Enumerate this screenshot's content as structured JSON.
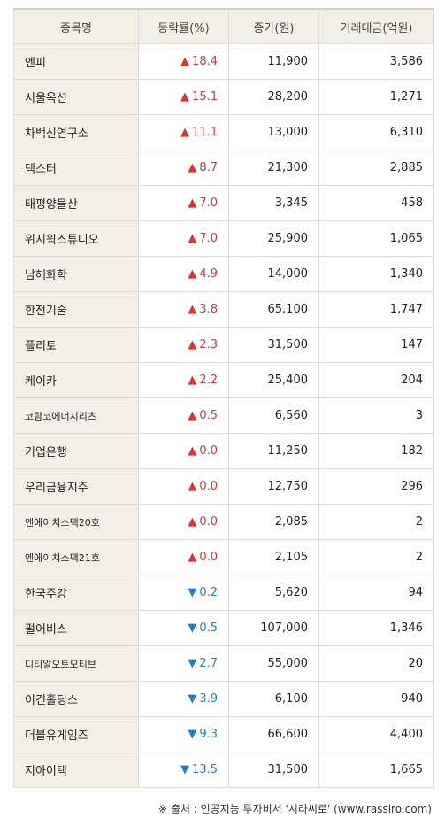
{
  "headers": {
    "name": "종목명",
    "rate": "등락률(%)",
    "price": "종가(원)",
    "amount": "거래대금(억원)"
  },
  "arrows": {
    "up": "▲",
    "down": "▼"
  },
  "colors": {
    "up": "#e03131",
    "down": "#1c7ed6",
    "header_bg": "#f3efe6"
  },
  "rows": [
    {
      "name": "엔피",
      "dir": "up",
      "rate": "18.4",
      "price": "11,900",
      "amount": "3,586"
    },
    {
      "name": "서울옥션",
      "dir": "up",
      "rate": "15.1",
      "price": "28,200",
      "amount": "1,271"
    },
    {
      "name": "차백신연구소",
      "dir": "up",
      "rate": "11.1",
      "price": "13,000",
      "amount": "6,310"
    },
    {
      "name": "덱스터",
      "dir": "up",
      "rate": "8.7",
      "price": "21,300",
      "amount": "2,885"
    },
    {
      "name": "태평양물산",
      "dir": "up",
      "rate": "7.0",
      "price": "3,345",
      "amount": "458"
    },
    {
      "name": "위지윅스튜디오",
      "dir": "up",
      "rate": "7.0",
      "price": "25,900",
      "amount": "1,065"
    },
    {
      "name": "남해화학",
      "dir": "up",
      "rate": "4.9",
      "price": "14,000",
      "amount": "1,340"
    },
    {
      "name": "한전기술",
      "dir": "up",
      "rate": "3.8",
      "price": "65,100",
      "amount": "1,747"
    },
    {
      "name": "플리토",
      "dir": "up",
      "rate": "2.3",
      "price": "31,500",
      "amount": "147"
    },
    {
      "name": "케이카",
      "dir": "up",
      "rate": "2.2",
      "price": "25,400",
      "amount": "204"
    },
    {
      "name": "코람코에너지리츠",
      "dir": "up",
      "rate": "0.5",
      "price": "6,560",
      "amount": "3",
      "small": true
    },
    {
      "name": "기업은행",
      "dir": "up",
      "rate": "0.0",
      "price": "11,250",
      "amount": "182"
    },
    {
      "name": "우리금융지주",
      "dir": "up",
      "rate": "0.0",
      "price": "12,750",
      "amount": "296"
    },
    {
      "name": "엔에이치스팩20호",
      "dir": "up",
      "rate": "0.0",
      "price": "2,085",
      "amount": "2",
      "small": true
    },
    {
      "name": "엔에이치스팩21호",
      "dir": "up",
      "rate": "0.0",
      "price": "2,105",
      "amount": "2",
      "small": true
    },
    {
      "name": "한국주강",
      "dir": "down",
      "rate": "0.2",
      "price": "5,620",
      "amount": "94"
    },
    {
      "name": "펄어비스",
      "dir": "down",
      "rate": "0.5",
      "price": "107,000",
      "amount": "1,346"
    },
    {
      "name": "디티알오토모티브",
      "dir": "down",
      "rate": "2.7",
      "price": "55,000",
      "amount": "20",
      "small": true
    },
    {
      "name": "이건홀딩스",
      "dir": "down",
      "rate": "3.9",
      "price": "6,100",
      "amount": "940"
    },
    {
      "name": "더블유게임즈",
      "dir": "down",
      "rate": "9.3",
      "price": "66,600",
      "amount": "4,400"
    },
    {
      "name": "지아이텍",
      "dir": "down",
      "rate": "13.5",
      "price": "31,500",
      "amount": "1,665"
    }
  ],
  "source": "※ 출처 : 인공지능 투자비서 '시라씨로' (www.rassiro.com)"
}
